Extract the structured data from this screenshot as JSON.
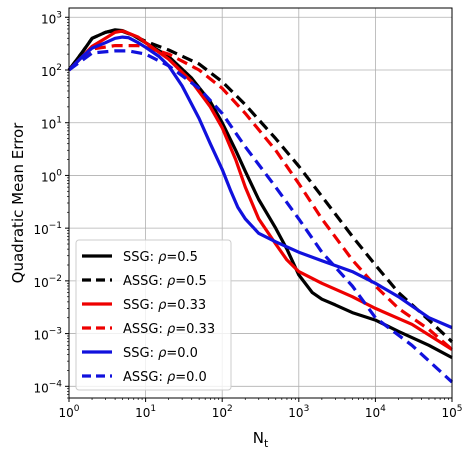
{
  "chart_data": {
    "type": "line",
    "title": "",
    "xlabel": "N",
    "xlabel_sub": "t",
    "ylabel": "Quadratic Mean Error",
    "xscale": "log",
    "yscale": "log",
    "xlim": [
      1,
      100000
    ],
    "ylim": [
      6e-05,
      1500
    ],
    "grid": true,
    "legend_position": "lower-left",
    "x_ticks": [
      {
        "value": 1,
        "base": "10",
        "exp": "0"
      },
      {
        "value": 10,
        "base": "10",
        "exp": "1"
      },
      {
        "value": 100,
        "base": "10",
        "exp": "2"
      },
      {
        "value": 1000,
        "base": "10",
        "exp": "3"
      },
      {
        "value": 10000,
        "base": "10",
        "exp": "4"
      },
      {
        "value": 100000,
        "base": "10",
        "exp": "5"
      }
    ],
    "y_ticks": [
      {
        "value": 0.0001,
        "base": "10",
        "exp": "−4"
      },
      {
        "value": 0.001,
        "base": "10",
        "exp": "−3"
      },
      {
        "value": 0.01,
        "base": "10",
        "exp": "−2"
      },
      {
        "value": 0.1,
        "base": "10",
        "exp": "−1"
      },
      {
        "value": 1,
        "base": "10",
        "exp": "0"
      },
      {
        "value": 10,
        "base": "10",
        "exp": "1"
      },
      {
        "value": 100,
        "base": "10",
        "exp": "2"
      },
      {
        "value": 1000,
        "base": "10",
        "exp": "3"
      }
    ],
    "series": [
      {
        "name": "SSG: ρ=0.5",
        "name_prefix": "SSG: ",
        "name_suffix": "=0.5",
        "color": "#000000",
        "dashed": false,
        "points": [
          [
            1,
            100
          ],
          [
            1.5,
            220
          ],
          [
            2,
            400
          ],
          [
            3,
            520
          ],
          [
            4,
            580
          ],
          [
            5,
            560
          ],
          [
            7,
            450
          ],
          [
            10,
            330
          ],
          [
            20,
            180
          ],
          [
            40,
            70
          ],
          [
            70,
            25
          ],
          [
            100,
            10
          ],
          [
            150,
            3
          ],
          [
            200,
            1.2
          ],
          [
            300,
            0.35
          ],
          [
            500,
            0.1
          ],
          [
            700,
            0.04
          ],
          [
            1000,
            0.013
          ],
          [
            1500,
            0.006
          ],
          [
            2000,
            0.0045
          ],
          [
            3000,
            0.0035
          ],
          [
            5000,
            0.0025
          ],
          [
            10000,
            0.0018
          ],
          [
            20000,
            0.0011
          ],
          [
            50000,
            0.0006
          ],
          [
            100000,
            0.00035
          ]
        ]
      },
      {
        "name": "ASSG: ρ=0.5",
        "name_prefix": "ASSG: ",
        "name_suffix": "=0.5",
        "color": "#000000",
        "dashed": true,
        "points": [
          [
            1,
            100
          ],
          [
            1.5,
            220
          ],
          [
            2,
            400
          ],
          [
            3,
            520
          ],
          [
            4,
            560
          ],
          [
            5,
            540
          ],
          [
            7,
            450
          ],
          [
            10,
            350
          ],
          [
            20,
            240
          ],
          [
            50,
            130
          ],
          [
            100,
            60
          ],
          [
            200,
            22
          ],
          [
            500,
            5
          ],
          [
            1000,
            1.5
          ],
          [
            2000,
            0.4
          ],
          [
            5000,
            0.07
          ],
          [
            10000,
            0.02
          ],
          [
            20000,
            0.006
          ],
          [
            50000,
            0.0018
          ],
          [
            100000,
            0.0007
          ]
        ]
      },
      {
        "name": "SSG: ρ=0.33",
        "name_prefix": "SSG: ",
        "name_suffix": "=0.33",
        "color": "#ee0000",
        "dashed": false,
        "points": [
          [
            1,
            100
          ],
          [
            1.5,
            180
          ],
          [
            2,
            280
          ],
          [
            3,
            400
          ],
          [
            4,
            520
          ],
          [
            5,
            550
          ],
          [
            6,
            500
          ],
          [
            8,
            420
          ],
          [
            10,
            330
          ],
          [
            20,
            160
          ],
          [
            40,
            60
          ],
          [
            70,
            20
          ],
          [
            100,
            8
          ],
          [
            150,
            2
          ],
          [
            200,
            0.6
          ],
          [
            300,
            0.15
          ],
          [
            500,
            0.05
          ],
          [
            700,
            0.025
          ],
          [
            1000,
            0.015
          ],
          [
            2000,
            0.009
          ],
          [
            5000,
            0.005
          ],
          [
            10000,
            0.003
          ],
          [
            30000,
            0.0015
          ],
          [
            100000,
            0.0005
          ]
        ]
      },
      {
        "name": "ASSG: ρ=0.33",
        "name_prefix": "ASSG: ",
        "name_suffix": "=0.33",
        "color": "#ee0000",
        "dashed": true,
        "points": [
          [
            1,
            100
          ],
          [
            2,
            250
          ],
          [
            4,
            290
          ],
          [
            8,
            290
          ],
          [
            10,
            270
          ],
          [
            20,
            200
          ],
          [
            50,
            100
          ],
          [
            100,
            45
          ],
          [
            200,
            15
          ],
          [
            500,
            3
          ],
          [
            1000,
            0.7
          ],
          [
            2000,
            0.15
          ],
          [
            5000,
            0.025
          ],
          [
            10000,
            0.008
          ],
          [
            20000,
            0.003
          ],
          [
            50000,
            0.0012
          ],
          [
            100000,
            0.0005
          ]
        ]
      },
      {
        "name": "SSG: ρ=0.0",
        "name_prefix": "SSG: ",
        "name_suffix": "=0.0",
        "color": "#1111dd",
        "dashed": false,
        "points": [
          [
            1,
            100
          ],
          [
            1.5,
            180
          ],
          [
            2,
            260
          ],
          [
            3,
            330
          ],
          [
            4,
            400
          ],
          [
            5,
            420
          ],
          [
            6,
            410
          ],
          [
            8,
            330
          ],
          [
            10,
            270
          ],
          [
            15,
            180
          ],
          [
            20,
            120
          ],
          [
            30,
            50
          ],
          [
            50,
            12
          ],
          [
            70,
            4
          ],
          [
            100,
            1.3
          ],
          [
            130,
            0.5
          ],
          [
            160,
            0.25
          ],
          [
            200,
            0.15
          ],
          [
            300,
            0.08
          ],
          [
            500,
            0.055
          ],
          [
            1000,
            0.035
          ],
          [
            2000,
            0.024
          ],
          [
            5000,
            0.015
          ],
          [
            10000,
            0.009
          ],
          [
            20000,
            0.005
          ],
          [
            50000,
            0.002
          ],
          [
            100000,
            0.0013
          ]
        ]
      },
      {
        "name": "ASSG: ρ=0.0",
        "name_prefix": "ASSG: ",
        "name_suffix": "=0.0",
        "color": "#1111dd",
        "dashed": true,
        "points": [
          [
            1,
            100
          ],
          [
            2,
            210
          ],
          [
            4,
            230
          ],
          [
            6,
            230
          ],
          [
            10,
            200
          ],
          [
            20,
            120
          ],
          [
            50,
            45
          ],
          [
            100,
            15
          ],
          [
            200,
            3.5
          ],
          [
            500,
            0.6
          ],
          [
            1000,
            0.15
          ],
          [
            2000,
            0.035
          ],
          [
            5000,
            0.008
          ],
          [
            10000,
            0.002
          ],
          [
            30000,
            0.0006
          ],
          [
            100000,
            0.00012
          ]
        ]
      }
    ]
  }
}
